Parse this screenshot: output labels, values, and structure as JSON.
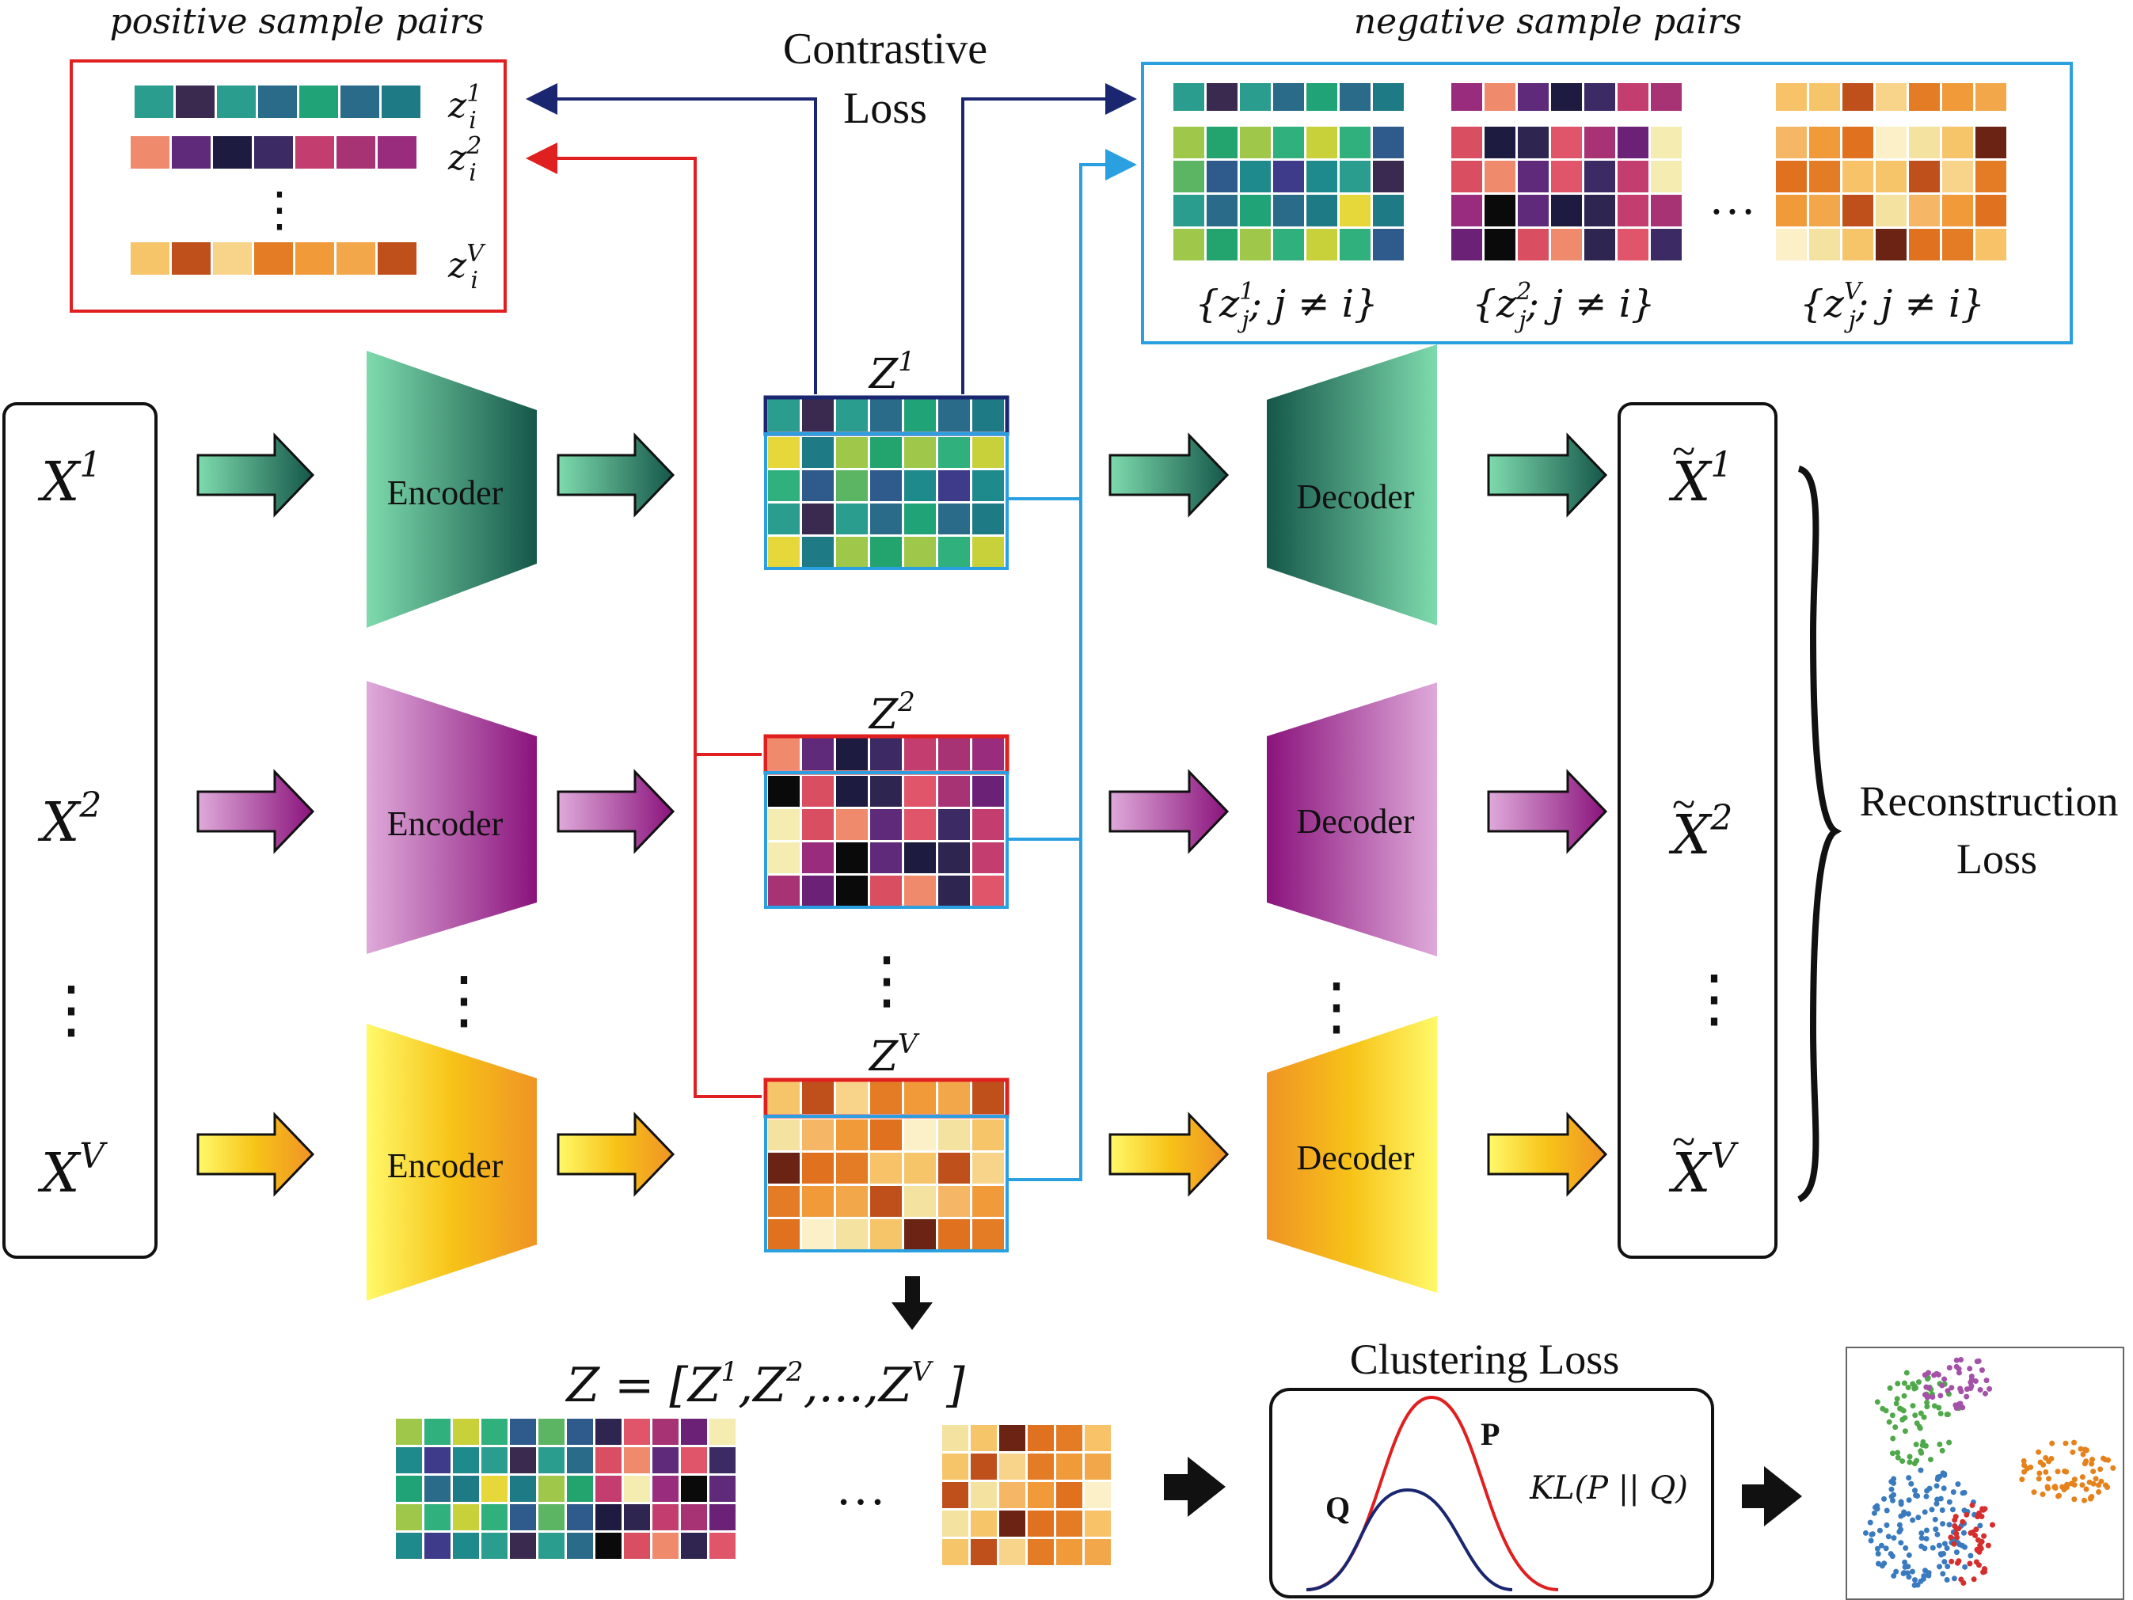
{
  "headers": {
    "positive": "positive sample pairs",
    "negative": "negative sample pairs"
  },
  "contrastive_loss": [
    "Contrastive",
    "Loss"
  ],
  "positive_labels": [
    {
      "base": "z",
      "sub": "i",
      "sup": "1"
    },
    {
      "base": "z",
      "sub": "i",
      "sup": "2"
    },
    {
      "base": "z",
      "sub": "i",
      "sup": "V"
    }
  ],
  "negative_labels": [
    {
      "sup": "1",
      "text": "{z_j^1; j ≠ i}"
    },
    {
      "sup": "2",
      "text": "{z_j^2; j ≠ i}"
    },
    {
      "sup": "V",
      "text": "{z_j^V; j ≠ i}"
    }
  ],
  "inputs": [
    "1",
    "2",
    "V"
  ],
  "encoder_label": "Encoder",
  "decoder_label": "Decoder",
  "z_labels": [
    "1",
    "2",
    "V"
  ],
  "outputs": [
    "1",
    "2",
    "V"
  ],
  "reconstruction_loss": [
    "Reconstruction",
    "Loss"
  ],
  "concat_formula": "Z = [Z1, Z2, ..., ZV ]",
  "clustering": {
    "title": "Clustering Loss",
    "p_label": "P",
    "q_label": "Q",
    "kl": "KL(P || Q)"
  },
  "colors": {
    "view1": [
      "#2a9d8f",
      "#21a378",
      "#1e7b85",
      "#23a36e",
      "#2fb07d",
      "#5bb562",
      "#1f8a8c",
      "#3b2a4f",
      "#2a6b8a",
      "#e6d83a",
      "#9fc84a",
      "#c8d13a",
      "#2f5a8c",
      "#3d3b8a"
    ],
    "view2": [
      "#6b2176",
      "#9a2c7d",
      "#d94f61",
      "#5f2a7a",
      "#2e2550",
      "#3b2a63",
      "#a73274",
      "#f4ecb0",
      "#0a0a0a",
      "#f08a6c",
      "#1d1b3f",
      "#e0556a",
      "#c43d6f"
    ],
    "viewV": [
      "#f6c56a",
      "#f2a84a",
      "#e0711e",
      "#f8d48a",
      "#f4e2a0",
      "#f7c268",
      "#f09a3a",
      "#6b2413",
      "#c0501b",
      "#fbf0c8",
      "#e47c25",
      "#f5b766"
    ],
    "green_arrow": [
      "#6fd6a3",
      "#1b5e4c"
    ],
    "purple_arrow": [
      "#d8a2d6",
      "#8c1a7f"
    ],
    "yellow_arrow": [
      "#fffb6a",
      "#f09a20"
    ],
    "red_line": "#e02020",
    "navy_line": "#1a2670",
    "blue_line": "#2ba0e0",
    "cluster_colors": [
      "#3a7abf",
      "#4fa84a",
      "#a451a8",
      "#e6821c",
      "#d62d2d"
    ]
  }
}
